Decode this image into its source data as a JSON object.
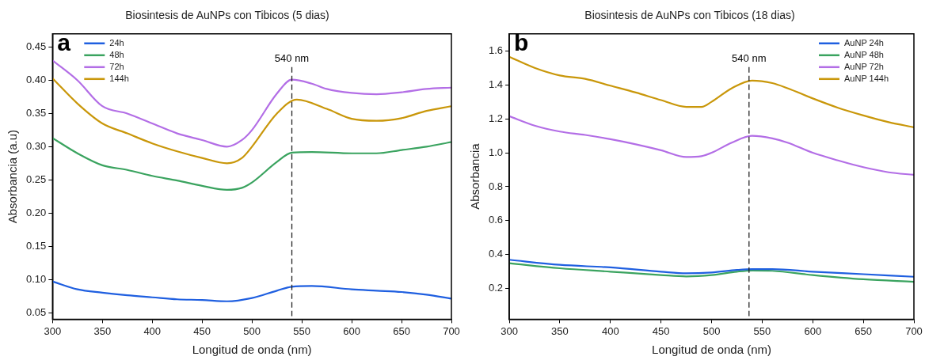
{
  "chart_data": [
    {
      "type": "line",
      "title": "Biosintesis de AuNPs con Tibicos (5 dias)",
      "xlabel": "Longitud de onda (nm)",
      "ylabel": "Absorbancia (a.u)",
      "annotations": [
        "a"
      ],
      "xlim": [
        300,
        700
      ],
      "xticks": [
        300,
        350,
        400,
        450,
        500,
        550,
        600,
        650,
        700
      ],
      "ylim": [
        0.04,
        0.47
      ],
      "yticks": [
        0.05,
        {
          "value": 0.1,
          "label": "0.10"
        },
        0.15,
        {
          "value": 0.2,
          "label": "0.20"
        },
        0.25,
        {
          "value": 0.3,
          "label": "0.30"
        },
        0.35,
        {
          "value": 0.4,
          "label": "0.40"
        },
        0.45
      ],
      "grid": false,
      "legend": "top left",
      "marker": "none",
      "line_style": "solid",
      "ref_lines": [
        {
          "axis": "x",
          "value": 540,
          "label": "540 nm",
          "color": "#222222",
          "line_style": "dashed"
        }
      ],
      "series": [
        {
          "name": "24h",
          "color": "#1f5fe0",
          "x": [
            300,
            325,
            350,
            375,
            400,
            425,
            450,
            475,
            500,
            525,
            540,
            560,
            600,
            625,
            650,
            675,
            700
          ],
          "values": [
            0.097,
            0.085,
            0.08,
            0.076,
            0.073,
            0.07,
            0.069,
            0.067,
            0.072,
            0.083,
            0.089,
            0.09,
            0.085,
            0.083,
            0.081,
            0.077,
            0.071
          ]
        },
        {
          "name": "48h",
          "color": "#3aa35f",
          "x": [
            300,
            325,
            350,
            375,
            400,
            425,
            450,
            475,
            490,
            500,
            525,
            540,
            560,
            600,
            625,
            650,
            675,
            700
          ],
          "values": [
            0.313,
            0.29,
            0.272,
            0.265,
            0.256,
            0.249,
            0.241,
            0.235,
            0.238,
            0.246,
            0.277,
            0.291,
            0.292,
            0.29,
            0.29,
            0.295,
            0.3,
            0.307
          ]
        },
        {
          "name": "72h",
          "color": "#b36ee6",
          "x": [
            300,
            325,
            350,
            375,
            400,
            425,
            450,
            475,
            490,
            500,
            525,
            540,
            560,
            575,
            600,
            625,
            650,
            675,
            700
          ],
          "values": [
            0.43,
            0.4,
            0.361,
            0.35,
            0.335,
            0.32,
            0.31,
            0.3,
            0.31,
            0.325,
            0.38,
            0.401,
            0.395,
            0.387,
            0.381,
            0.379,
            0.382,
            0.387,
            0.389
          ]
        },
        {
          "name": "144h",
          "color": "#c9970a",
          "x": [
            300,
            325,
            350,
            375,
            400,
            425,
            450,
            475,
            490,
            500,
            525,
            545,
            575,
            600,
            625,
            650,
            675,
            700
          ],
          "values": [
            0.403,
            0.365,
            0.335,
            0.32,
            0.305,
            0.293,
            0.283,
            0.275,
            0.283,
            0.3,
            0.35,
            0.371,
            0.357,
            0.342,
            0.339,
            0.343,
            0.354,
            0.361
          ]
        }
      ]
    },
    {
      "type": "line",
      "title": "Biosintesis de AuNPs con Tibicos (18 dias)",
      "xlabel": "Longitud de onda (nm)",
      "ylabel": "Absorbancia",
      "annotations": [
        "b"
      ],
      "xlim": [
        300,
        700
      ],
      "xticks": [
        300,
        350,
        400,
        450,
        500,
        550,
        600,
        650,
        700
      ],
      "ylim": [
        0.02,
        1.7
      ],
      "yticks": [
        0.2,
        0.4,
        0.6,
        0.8,
        {
          "value": 1,
          "label": "1.0"
        },
        1.2,
        1.4,
        1.6
      ],
      "grid": false,
      "legend": "top right",
      "marker": "none",
      "line_style": "solid",
      "ref_lines": [
        {
          "axis": "x",
          "value": 537,
          "label": "540 nm",
          "color": "#222222",
          "line_style": "dashed"
        }
      ],
      "series": [
        {
          "name": "AuNP 24h",
          "color": "#1f5fe0",
          "x": [
            300,
            350,
            400,
            450,
            475,
            500,
            525,
            540,
            560,
            600,
            650,
            700
          ],
          "values": [
            0.37,
            0.34,
            0.325,
            0.3,
            0.29,
            0.295,
            0.31,
            0.315,
            0.315,
            0.3,
            0.285,
            0.27
          ]
        },
        {
          "name": "AuNP 48h",
          "color": "#3aa35f",
          "x": [
            300,
            350,
            400,
            450,
            475,
            500,
            525,
            540,
            560,
            600,
            650,
            700
          ],
          "values": [
            0.35,
            0.32,
            0.3,
            0.28,
            0.272,
            0.28,
            0.3,
            0.307,
            0.305,
            0.28,
            0.255,
            0.24
          ]
        },
        {
          "name": "AuNP 72h",
          "color": "#b36ee6",
          "x": [
            300,
            325,
            350,
            375,
            400,
            425,
            450,
            475,
            490,
            500,
            520,
            540,
            560,
            575,
            600,
            625,
            650,
            675,
            700
          ],
          "values": [
            1.215,
            1.16,
            1.125,
            1.105,
            1.08,
            1.05,
            1.015,
            0.975,
            0.98,
            1.0,
            1.06,
            1.1,
            1.085,
            1.06,
            1.0,
            0.955,
            0.915,
            0.885,
            0.87
          ]
        },
        {
          "name": "AuNP 144h",
          "color": "#c9970a",
          "x": [
            300,
            325,
            350,
            375,
            400,
            425,
            450,
            475,
            490,
            500,
            520,
            540,
            560,
            575,
            600,
            625,
            650,
            675,
            700
          ],
          "values": [
            1.565,
            1.5,
            1.455,
            1.435,
            1.395,
            1.355,
            1.31,
            1.27,
            1.27,
            1.3,
            1.38,
            1.425,
            1.41,
            1.38,
            1.32,
            1.265,
            1.22,
            1.18,
            1.15
          ]
        }
      ]
    }
  ]
}
